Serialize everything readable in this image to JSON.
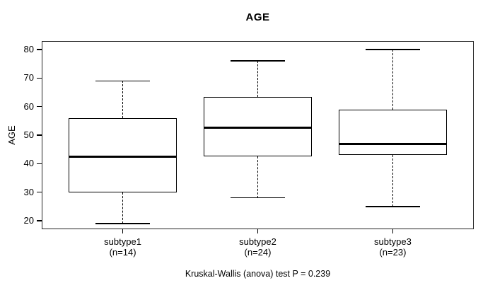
{
  "chart_data": {
    "type": "boxplot",
    "title": "AGE",
    "xlabel": "",
    "ylabel": "AGE",
    "caption": "Kruskal-Wallis (anova) test P = 0.239",
    "ylim": [
      17,
      83
    ],
    "xlim": [
      0.4,
      3.6
    ],
    "yticks": [
      20,
      30,
      40,
      50,
      60,
      70,
      80
    ],
    "grid": false,
    "legend": null,
    "categories": [
      "subtype1",
      "subtype2",
      "subtype3"
    ],
    "category_sublabels": [
      "(n=14)",
      "(n=24)",
      "(n=23)"
    ],
    "box_width": 0.8,
    "cap_width": 0.4,
    "series": [
      {
        "name": "subtype1",
        "n": 14,
        "x": 1,
        "whisker_low": 19,
        "q1": 30,
        "median": 42.5,
        "q3": 56,
        "whisker_high": 69,
        "outliers": []
      },
      {
        "name": "subtype2",
        "n": 24,
        "x": 2,
        "whisker_low": 28,
        "q1": 42.5,
        "median": 52.5,
        "q3": 63.5,
        "whisker_high": 76,
        "outliers": []
      },
      {
        "name": "subtype3",
        "n": 23,
        "x": 3,
        "whisker_low": 25,
        "q1": 43,
        "median": 47,
        "q3": 59,
        "whisker_high": 80,
        "outliers": []
      }
    ],
    "colors": {
      "line": "#000000",
      "box_fill": "#ffffff",
      "background": "#ffffff"
    }
  }
}
